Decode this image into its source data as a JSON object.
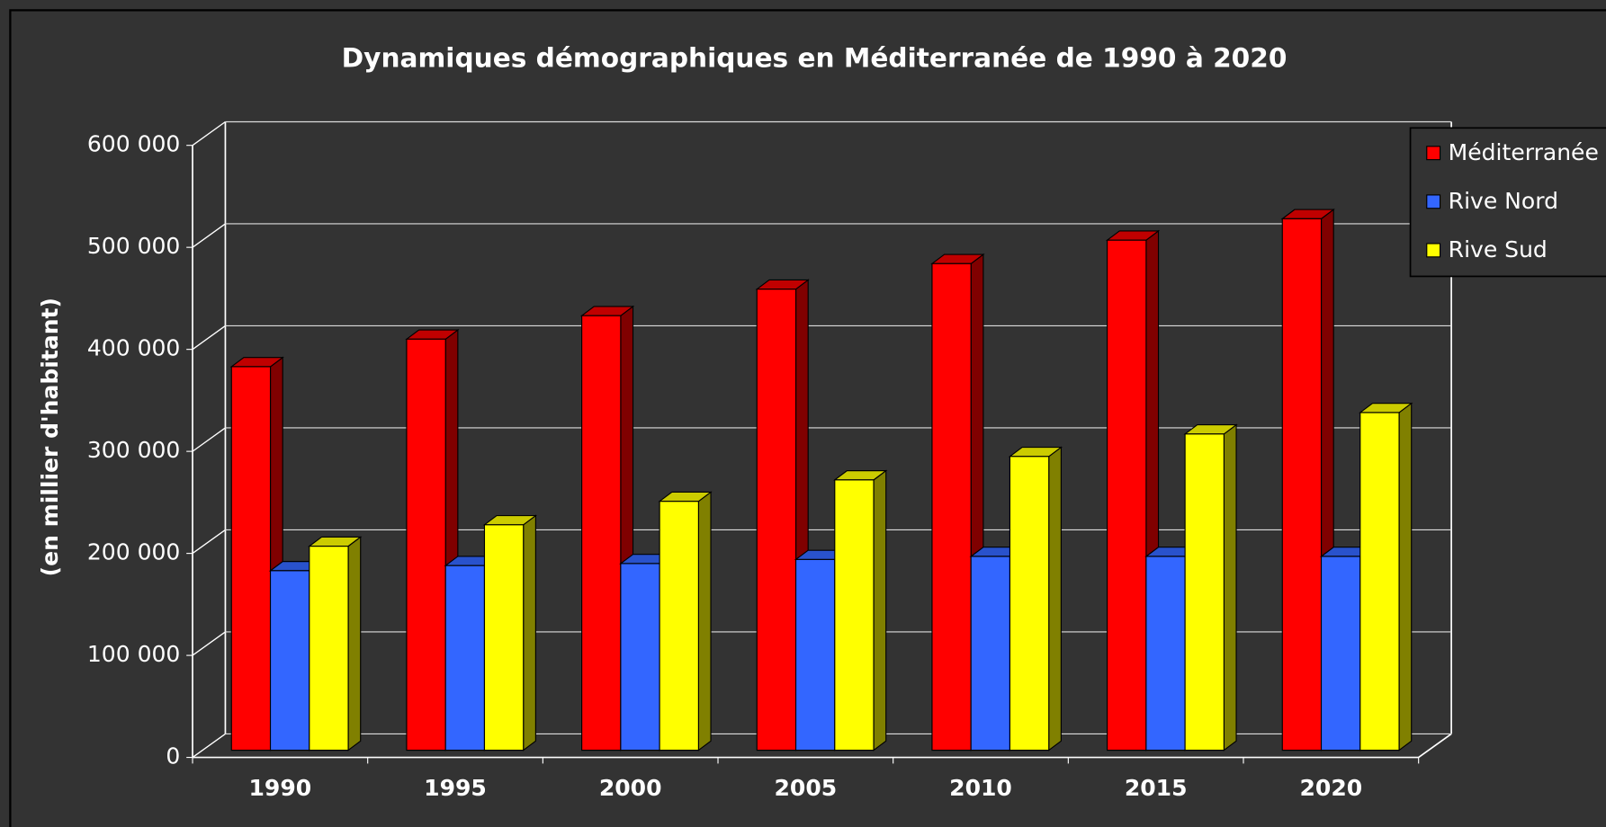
{
  "chart_data": {
    "type": "bar3d",
    "title": "Dynamiques démographiques en Méditerranée de 1990 à 2020",
    "y_label": "(en millier d'habitant)",
    "categories": [
      "1990",
      "1995",
      "2000",
      "2005",
      "2010",
      "2015",
      "2020"
    ],
    "series": [
      {
        "name": "Méditerranée",
        "color": "#ff0000",
        "values": [
          376000,
          403000,
          426000,
          452000,
          477000,
          500000,
          521000
        ]
      },
      {
        "name": "Rive Nord",
        "color": "#3366ff",
        "values": [
          176000,
          181000,
          183000,
          187000,
          190000,
          190000,
          190000
        ]
      },
      {
        "name": "Rive Sud",
        "color": "#ffff00",
        "values": [
          200000,
          221000,
          244000,
          265000,
          288000,
          310000,
          331000
        ]
      }
    ],
    "ylim": [
      0,
      600000
    ],
    "yticks": [
      0,
      {
        "value": 100000,
        "label": "100 000"
      },
      {
        "value": 200000,
        "label": "200 000"
      },
      {
        "value": 300000,
        "label": "300 000"
      },
      {
        "value": 400000,
        "label": "400 000"
      },
      {
        "value": 500000,
        "label": "500 000"
      },
      {
        "value": 600000,
        "label": "600 000"
      }
    ],
    "grid": true,
    "legend": "top-right"
  }
}
